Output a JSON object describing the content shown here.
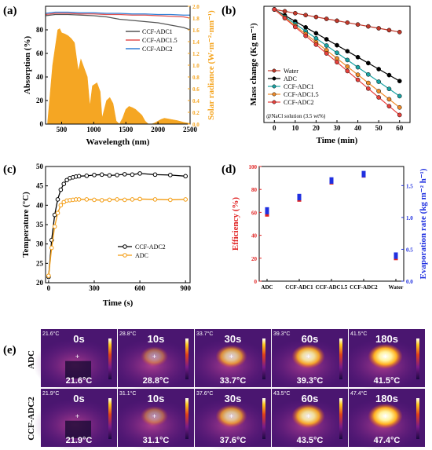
{
  "chart_data": [
    {
      "panel": "(a)",
      "type": "line",
      "xlabel": "Wavelength (nm)",
      "ylabel": "Absorption (%)",
      "y2label": "Solar radiance (W·m⁻²·nm⁻¹)",
      "xlim": [
        250,
        2500
      ],
      "ylim": [
        0,
        100
      ],
      "y2lim": [
        0,
        2.0
      ],
      "xticks": [
        500,
        1000,
        1500,
        2000,
        2500
      ],
      "yticks": [
        0,
        20,
        40,
        60,
        80
      ],
      "y2ticks": [
        0.0,
        0.2,
        0.4,
        0.6,
        0.8,
        1.0,
        1.2,
        1.4,
        1.6,
        1.8,
        2.0
      ],
      "legend_position": "top-right",
      "series": [
        {
          "name": "CCF-ADC1",
          "color": "#555555",
          "x": [
            250,
            400,
            600,
            800,
            1000,
            1200,
            1400,
            1600,
            1800,
            2000,
            2200,
            2400,
            2500
          ],
          "y": [
            92,
            93,
            93,
            92.5,
            92,
            91,
            89,
            88,
            87,
            86,
            84,
            82,
            80
          ]
        },
        {
          "name": "CCF-ADC1.5",
          "color": "#e05050",
          "x": [
            250,
            400,
            600,
            800,
            1000,
            1200,
            1400,
            1600,
            1800,
            2000,
            2200,
            2400,
            2500
          ],
          "y": [
            93,
            94,
            94,
            93.5,
            93.5,
            93,
            93,
            92.5,
            92.5,
            92,
            91.5,
            91,
            90
          ]
        },
        {
          "name": "CCF-ADC2",
          "color": "#2f7fd6",
          "x": [
            250,
            400,
            600,
            800,
            1000,
            1200,
            1400,
            1600,
            1800,
            2000,
            2200,
            2400,
            2500
          ],
          "y": [
            94,
            95,
            95,
            94.5,
            94.5,
            94,
            94,
            93.5,
            93.5,
            93,
            93,
            92.5,
            92.5
          ]
        }
      ],
      "solar_spectrum": {
        "color": "#f5a623",
        "x": [
          280,
          320,
          360,
          400,
          440,
          470,
          500,
          550,
          600,
          650,
          700,
          760,
          800,
          850,
          900,
          940,
          980,
          1050,
          1100,
          1130,
          1200,
          1250,
          1300,
          1350,
          1400,
          1450,
          1500,
          1550,
          1600,
          1650,
          1700,
          1750,
          1800,
          1850,
          1900,
          1950,
          2000,
          2050,
          2100,
          2150,
          2200,
          2300,
          2400,
          2500
        ],
        "y": [
          0.0,
          0.5,
          1.0,
          1.3,
          1.6,
          1.62,
          1.55,
          1.53,
          1.5,
          1.45,
          1.38,
          0.9,
          1.1,
          0.95,
          0.8,
          0.3,
          0.65,
          0.7,
          0.55,
          0.1,
          0.4,
          0.45,
          0.35,
          0.05,
          0.0,
          0.1,
          0.25,
          0.3,
          0.28,
          0.25,
          0.2,
          0.15,
          0.05,
          0.0,
          0.0,
          0.02,
          0.05,
          0.08,
          0.1,
          0.09,
          0.08,
          0.06,
          0.03,
          0.01
        ]
      }
    },
    {
      "panel": "(b)",
      "type": "line",
      "xlabel": "Time (min)",
      "ylabel": "Mass change (Kg m⁻¹)",
      "xlim": [
        -5,
        65
      ],
      "ylim": [
        -18,
        0.5
      ],
      "xticks": [
        0,
        10,
        20,
        30,
        40,
        50,
        60
      ],
      "annotation": "@NaCl solution (3.5 wt%)",
      "legend_position": "bottom-left",
      "x": [
        0,
        5,
        10,
        15,
        20,
        25,
        30,
        35,
        40,
        45,
        50,
        55,
        60
      ],
      "series": [
        {
          "name": "Water",
          "color": "#c0392b",
          "values": [
            0,
            -0.3,
            -0.6,
            -0.9,
            -1.2,
            -1.5,
            -1.8,
            -2.1,
            -2.4,
            -2.7,
            -3.0,
            -3.3,
            -3.6
          ]
        },
        {
          "name": "ADC",
          "color": "#000000",
          "values": [
            0,
            -0.95,
            -1.9,
            -2.85,
            -3.8,
            -4.75,
            -5.7,
            -6.65,
            -7.6,
            -8.55,
            -9.5,
            -10.45,
            -11.4
          ]
        },
        {
          "name": "CCF-ADC1",
          "color": "#1aa3a3",
          "values": [
            0,
            -1.15,
            -2.3,
            -3.45,
            -4.6,
            -5.75,
            -6.9,
            -8.05,
            -9.2,
            -10.35,
            -11.5,
            -12.65,
            -13.8
          ]
        },
        {
          "name": "CCF-ADC1.5",
          "color": "#f08c2a",
          "values": [
            0,
            -1.3,
            -2.6,
            -3.9,
            -5.2,
            -6.5,
            -7.8,
            -9.1,
            -10.4,
            -11.7,
            -13.0,
            -14.3,
            -15.6
          ]
        },
        {
          "name": "CCF-ADC2",
          "color": "#e8413c",
          "values": [
            0,
            -1.4,
            -2.8,
            -4.2,
            -5.6,
            -7.0,
            -8.4,
            -9.8,
            -11.2,
            -12.6,
            -14.0,
            -15.4,
            -16.8
          ]
        }
      ]
    },
    {
      "panel": "(c)",
      "type": "line",
      "xlabel": "Time (s)",
      "ylabel": "Temperature (°C)",
      "xlim": [
        -20,
        930
      ],
      "ylim": [
        20,
        50
      ],
      "xticks": [
        0,
        300,
        600,
        900
      ],
      "yticks": [
        20,
        25,
        30,
        35,
        40,
        45,
        50
      ],
      "legend_position": "bottom-right",
      "series": [
        {
          "name": "CCF-ADC2",
          "color": "#000000",
          "x": [
            0,
            20,
            40,
            60,
            80,
            100,
            120,
            140,
            160,
            180,
            200,
            250,
            300,
            350,
            400,
            450,
            500,
            550,
            600,
            700,
            800,
            900
          ],
          "values": [
            21.5,
            31.0,
            37.5,
            41.5,
            44.0,
            45.5,
            46.5,
            47.0,
            47.2,
            47.4,
            47.5,
            47.6,
            47.8,
            47.9,
            47.7,
            47.8,
            48.0,
            47.9,
            48.2,
            47.9,
            47.8,
            47.5
          ]
        },
        {
          "name": "ADC",
          "color": "#f39c12",
          "x": [
            0,
            20,
            40,
            60,
            80,
            100,
            120,
            140,
            160,
            180,
            200,
            250,
            300,
            350,
            400,
            450,
            500,
            550,
            600,
            700,
            800,
            900
          ],
          "values": [
            21.8,
            29.0,
            34.5,
            38.0,
            40.0,
            40.8,
            41.2,
            41.3,
            41.4,
            41.5,
            41.5,
            41.5,
            41.4,
            41.3,
            41.4,
            41.5,
            41.4,
            41.5,
            41.6,
            41.5,
            41.4,
            41.5
          ]
        }
      ]
    },
    {
      "panel": "(d)",
      "type": "scatter",
      "categories": [
        "ADC",
        "CCF-ADC1",
        "CCF-ADC1.5",
        "CCF-ADC2",
        "Water"
      ],
      "ylabel": "Efficiency (%)",
      "y2label": "Evaporation rate (kg m⁻² h⁻¹)",
      "ylim": [
        0,
        100
      ],
      "y2lim": [
        0,
        1.8
      ],
      "yticks": [
        0,
        20,
        40,
        60,
        80,
        100
      ],
      "y2ticks": [
        0.0,
        0.5,
        1.0,
        1.5
      ],
      "series": [
        {
          "name": "Efficiency",
          "color": "#e02020",
          "axis": "left",
          "values": [
            [
              58,
              61
            ],
            [
              71,
              73
            ],
            [
              86,
              88
            ],
            [
              92,
              94
            ],
            [
              20,
              23
            ]
          ]
        },
        {
          "name": "Evaporation rate",
          "color": "#2030e0",
          "axis": "right",
          "values": [
            [
              1.08,
              1.13
            ],
            [
              1.3,
              1.34
            ],
            [
              1.56,
              1.6
            ],
            [
              1.66,
              1.7
            ],
            [
              0.38,
              0.42
            ]
          ]
        }
      ]
    }
  ],
  "panel_e": {
    "label": "(e)",
    "rows": [
      {
        "label": "ADC",
        "frames": [
          {
            "time": "0s",
            "temp": "21.6°C",
            "corner": "21.6°C"
          },
          {
            "time": "10s",
            "temp": "28.8°C",
            "corner": "28.8°C"
          },
          {
            "time": "30s",
            "temp": "33.7°C",
            "corner": "33.7°C"
          },
          {
            "time": "60s",
            "temp": "39.3°C",
            "corner": "39.3°C"
          },
          {
            "time": "180s",
            "temp": "41.5°C",
            "corner": "41.5°C"
          }
        ]
      },
      {
        "label": "CCF-ADC2",
        "frames": [
          {
            "time": "0s",
            "temp": "21.9°C",
            "corner": "21.9°C"
          },
          {
            "time": "10s",
            "temp": "31.1°C",
            "corner": "31.1°C"
          },
          {
            "time": "30s",
            "temp": "37.6°C",
            "corner": "37.6°C"
          },
          {
            "time": "60s",
            "temp": "43.5°C",
            "corner": "43.5°C"
          },
          {
            "time": "180s",
            "temp": "47.4°C",
            "corner": "47.4°C"
          }
        ]
      }
    ]
  }
}
